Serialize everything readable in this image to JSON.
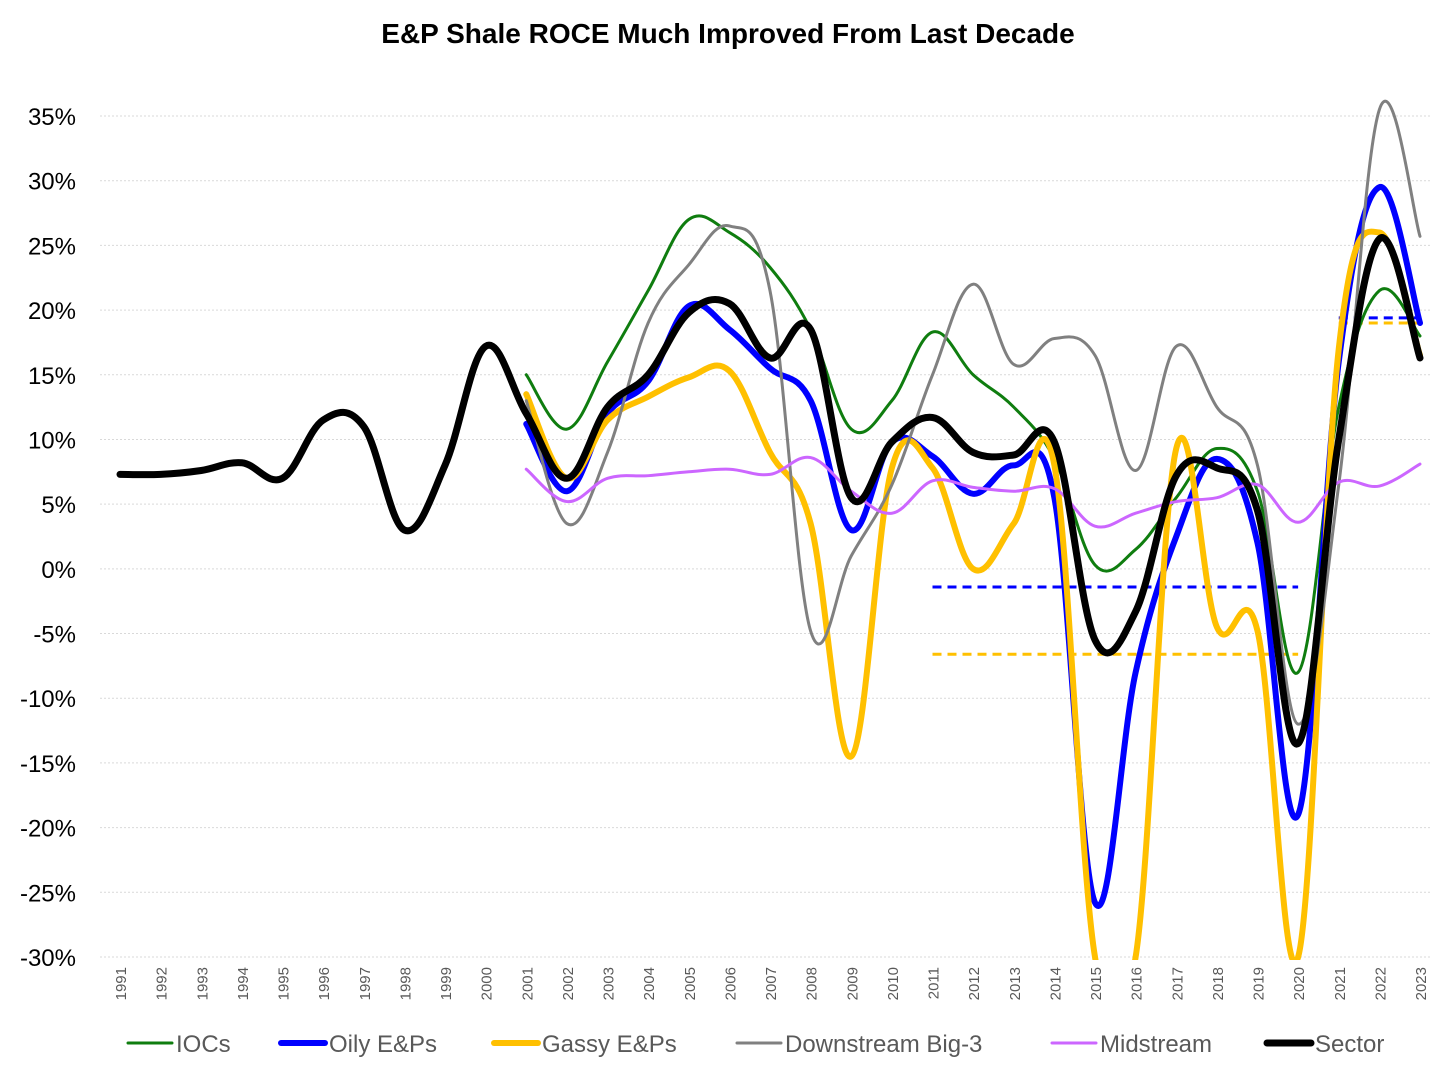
{
  "chart_data": {
    "type": "line",
    "title": "E&P Shale ROCE Much Improved From Last Decade",
    "xlabel": "",
    "ylabel": "",
    "ylim": [
      -30,
      35
    ],
    "y_ticks": [
      35,
      30,
      25,
      20,
      15,
      10,
      5,
      0,
      -5,
      -10,
      -15,
      -20,
      -25,
      -30
    ],
    "y_tick_labels": [
      "35%",
      "30%",
      "25%",
      "20%",
      "15%",
      "10%",
      "5%",
      "0%",
      "-5%",
      "-10%",
      "-15%",
      "-20%",
      "-25%",
      "-30%"
    ],
    "grid": true,
    "legend_position": "bottom",
    "categories": [
      "1991",
      "1992",
      "1993",
      "1994",
      "1995",
      "1996",
      "1997",
      "1998",
      "1999",
      "2000",
      "2001",
      "2002",
      "2003",
      "2004",
      "2005",
      "2006",
      "2007",
      "2008",
      "2009",
      "2010",
      "2011",
      "2012",
      "2013",
      "2014",
      "2015",
      "2016",
      "2017",
      "2018",
      "2019",
      "2020",
      "2021",
      "2022",
      "2023"
    ],
    "series": [
      {
        "name": "IOCs",
        "color": "#0f7d0f",
        "width": 3,
        "values": [
          null,
          null,
          null,
          null,
          null,
          null,
          null,
          null,
          null,
          null,
          15.0,
          10.8,
          16.0,
          21.5,
          27.0,
          26.0,
          23.3,
          18.5,
          10.8,
          13.0,
          18.3,
          15.0,
          12.5,
          8.5,
          0.3,
          1.5,
          5.5,
          9.3,
          6.0,
          -8.0,
          12.5,
          21.5,
          18.0
        ]
      },
      {
        "name": "Oily E&Ps",
        "color": "#0000ff",
        "width": 6,
        "values": [
          null,
          null,
          null,
          null,
          null,
          null,
          null,
          null,
          null,
          null,
          11.2,
          6.0,
          12.0,
          14.5,
          20.3,
          18.5,
          15.5,
          13.0,
          3.0,
          9.8,
          8.7,
          5.8,
          8.0,
          5.5,
          -25.8,
          -8.0,
          2.5,
          8.5,
          2.0,
          -19.0,
          16.0,
          29.5,
          19.0
        ]
      },
      {
        "name": "Gassy E&Ps",
        "color": "#ffc000",
        "width": 6,
        "values": [
          null,
          null,
          null,
          null,
          null,
          null,
          null,
          null,
          null,
          null,
          13.5,
          7.0,
          11.5,
          13.3,
          14.8,
          15.3,
          9.0,
          3.5,
          -14.5,
          7.8,
          7.8,
          0.0,
          3.5,
          8.0,
          -30.0,
          -30.0,
          9.3,
          -4.5,
          -4.8,
          -30.0,
          17.0,
          26.0,
          16.5
        ]
      },
      {
        "name": "Downstream Big-3",
        "color": "#808080",
        "width": 3,
        "values": [
          null,
          null,
          null,
          null,
          null,
          null,
          null,
          null,
          null,
          null,
          13.0,
          3.5,
          9.0,
          19.0,
          23.5,
          26.5,
          21.5,
          -4.8,
          1.0,
          6.5,
          15.0,
          22.0,
          15.8,
          17.8,
          16.5,
          7.6,
          17.2,
          12.5,
          8.0,
          -12.0,
          6.5,
          35.5,
          25.7
        ]
      },
      {
        "name": "Midstream",
        "color": "#cc66ff",
        "width": 3,
        "values": [
          null,
          null,
          null,
          null,
          null,
          null,
          null,
          null,
          null,
          null,
          7.7,
          5.2,
          7.0,
          7.2,
          7.5,
          7.7,
          7.3,
          8.6,
          6.0,
          4.3,
          6.8,
          6.3,
          6.0,
          6.2,
          3.3,
          4.3,
          5.2,
          5.5,
          6.5,
          3.6,
          6.7,
          6.4,
          8.1
        ]
      },
      {
        "name": "Sector",
        "color": "#000000",
        "width": 7,
        "values": [
          7.3,
          7.3,
          7.6,
          8.2,
          7.0,
          11.5,
          11.0,
          3.0,
          8.0,
          17.2,
          12.0,
          7.0,
          12.5,
          15.0,
          19.8,
          20.5,
          16.3,
          18.5,
          5.5,
          9.8,
          11.7,
          9.0,
          8.8,
          9.8,
          -5.5,
          -3.3,
          7.2,
          7.8,
          4.5,
          -13.5,
          10.0,
          25.5,
          16.3
        ]
      }
    ],
    "reference_lines": [
      {
        "series": "Oily E&Ps",
        "color": "#0000ff",
        "value": -1.4,
        "from": "2011",
        "to": "2020"
      },
      {
        "series": "Gassy E&Ps",
        "color": "#ffc000",
        "value": -6.6,
        "from": "2011",
        "to": "2020"
      },
      {
        "series": "Oily E&Ps",
        "color": "#0000ff",
        "value": 19.4,
        "from": "2021",
        "to": "2023"
      },
      {
        "series": "Gassy E&Ps",
        "color": "#ffc000",
        "value": 19.0,
        "from": "2021",
        "to": "2023"
      }
    ]
  }
}
